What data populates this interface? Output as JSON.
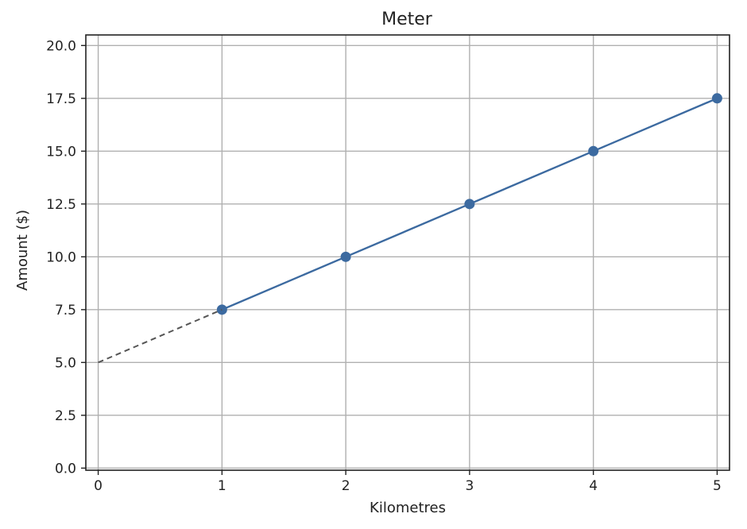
{
  "chart_data": {
    "type": "line",
    "title": "Meter",
    "xlabel": "Kilometres",
    "ylabel": "Amount ($)",
    "xlim": [
      -0.1,
      5.1
    ],
    "ylim": [
      -0.1,
      20.5
    ],
    "x_ticks": [
      0,
      1,
      2,
      3,
      4,
      5
    ],
    "x_tick_labels": [
      "0",
      "1",
      "2",
      "3",
      "4",
      "5"
    ],
    "y_ticks": [
      0,
      2.5,
      5,
      7.5,
      10,
      12.5,
      15,
      17.5,
      20
    ],
    "y_tick_labels": [
      "0.0",
      "2.5",
      "5.0",
      "7.5",
      "10.0",
      "12.5",
      "15.0",
      "17.5",
      "20.0"
    ],
    "grid": true,
    "series": [
      {
        "style": "solid-line-with-markers",
        "color": "#3c6aa0",
        "x": [
          1,
          2,
          3,
          4,
          5
        ],
        "y": [
          7.5,
          10,
          12.5,
          15,
          17.5
        ]
      },
      {
        "style": "dashed-line",
        "color": "#555555",
        "x": [
          0,
          1
        ],
        "y": [
          5,
          7.5
        ]
      }
    ]
  }
}
